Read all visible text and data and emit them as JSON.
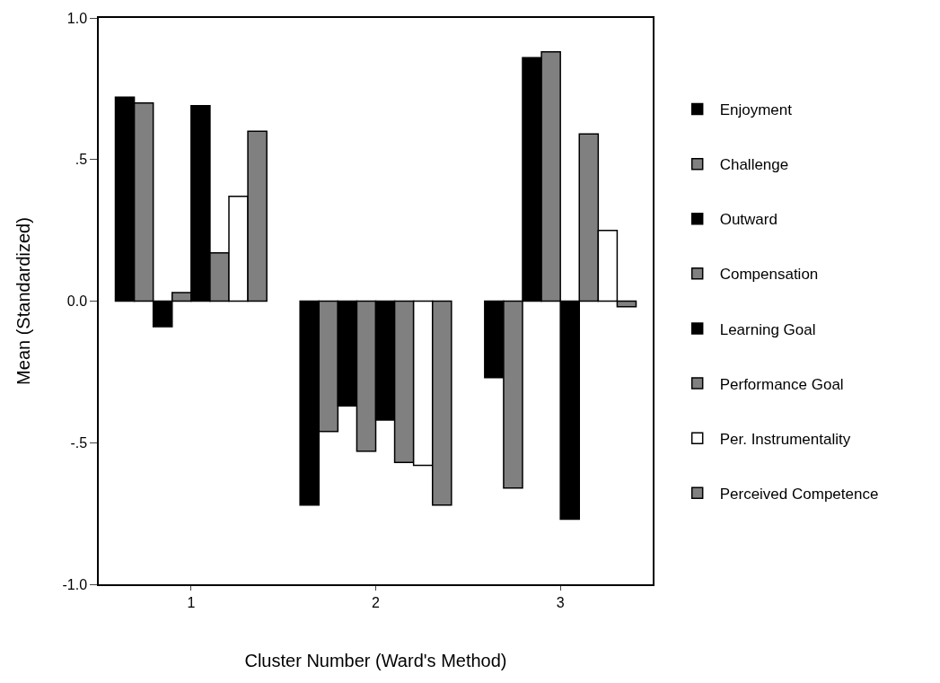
{
  "chart_data": {
    "type": "bar",
    "xlabel": "Cluster Number (Ward's Method)",
    "ylabel": "Mean (Standardized)",
    "categories": [
      "1",
      "2",
      "3"
    ],
    "series": [
      {
        "name": "Enjoyment",
        "color": "#000000",
        "values": [
          0.72,
          -0.72,
          -0.27
        ]
      },
      {
        "name": "Challenge",
        "color": "#808080",
        "values": [
          0.7,
          -0.46,
          -0.66
        ]
      },
      {
        "name": "Outward",
        "color": "#000000",
        "values": [
          -0.09,
          -0.37,
          0.86
        ]
      },
      {
        "name": "Compensation",
        "color": "#808080",
        "values": [
          0.03,
          -0.53,
          0.88
        ]
      },
      {
        "name": "Learning Goal",
        "color": "#000000",
        "values": [
          0.69,
          -0.42,
          -0.77
        ]
      },
      {
        "name": "Performance Goal",
        "color": "#808080",
        "values": [
          0.17,
          -0.57,
          0.59
        ]
      },
      {
        "name": "Per. Instrumentality",
        "color": "#ffffff",
        "values": [
          0.37,
          -0.58,
          0.25
        ]
      },
      {
        "name": "Perceived Competence",
        "color": "#808080",
        "values": [
          0.6,
          -0.72,
          -0.02
        ]
      }
    ],
    "ylim": [
      -1.0,
      1.0
    ],
    "yticks": [
      {
        "value": 1.0,
        "label": "1.0"
      },
      {
        "value": 0.5,
        "label": ".5"
      },
      {
        "value": 0.0,
        "label": "0.0"
      },
      {
        "value": -0.5,
        "label": "-.5"
      },
      {
        "value": -1.0,
        "label": "-1.0"
      }
    ],
    "legend": "right"
  }
}
